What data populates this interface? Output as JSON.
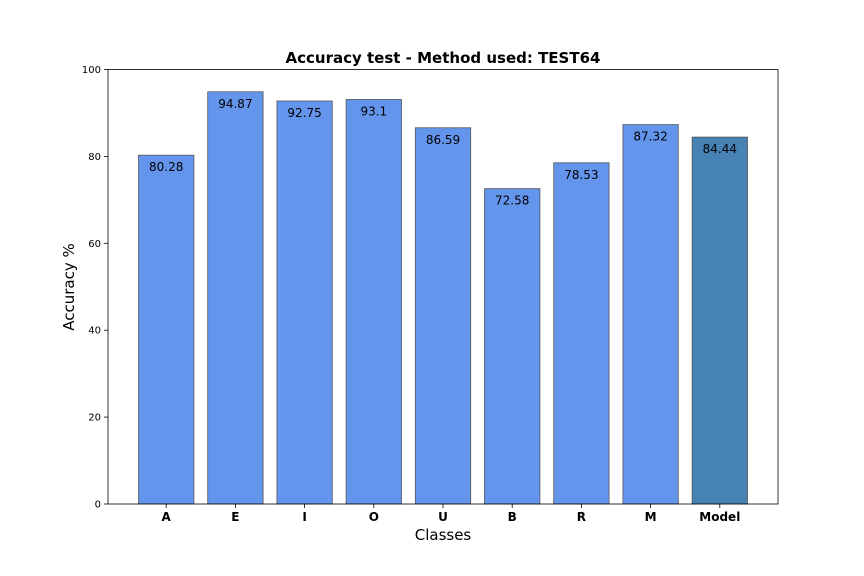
{
  "chart_data": {
    "type": "bar",
    "title": "Accuracy test - Method used: TEST64",
    "xlabel": "Classes",
    "ylabel": "Accuracy %",
    "categories": [
      "A",
      "E",
      "I",
      "O",
      "U",
      "B",
      "R",
      "M",
      "Model"
    ],
    "values": [
      80.28,
      94.87,
      92.75,
      93.1,
      86.59,
      72.58,
      78.53,
      87.32,
      84.44
    ],
    "data_labels": [
      "80.28",
      "94.87",
      "92.75",
      "93.1",
      "86.59",
      "72.58",
      "78.53",
      "87.32",
      "84.44"
    ],
    "ylim": [
      0,
      100
    ],
    "yticks": [
      "0",
      "20",
      "40",
      "60",
      "80",
      "100"
    ],
    "grid": false,
    "legend": "none",
    "colors": {
      "class_bar": "#6495ED",
      "model_bar": "#4682B4",
      "bar_edge": "#555555"
    }
  }
}
